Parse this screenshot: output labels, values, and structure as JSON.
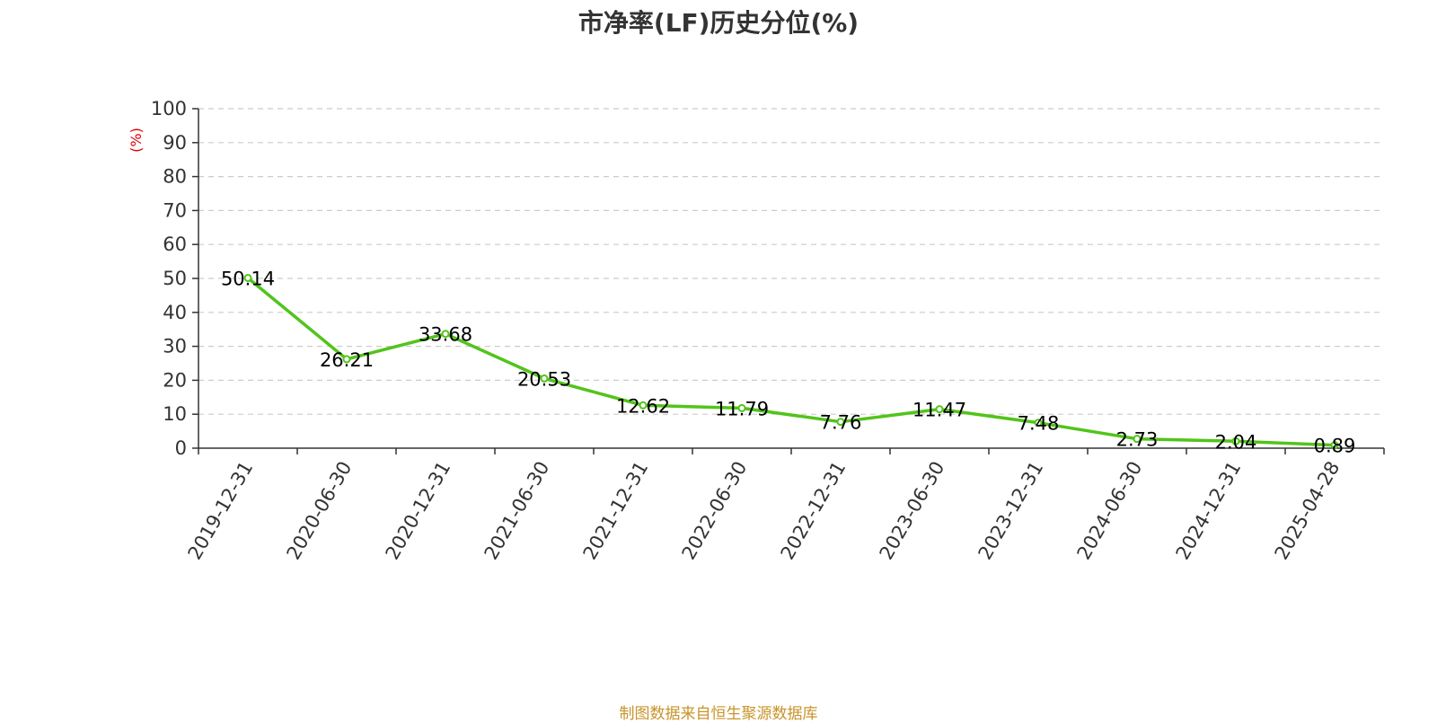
{
  "chart_data": {
    "type": "line",
    "title": "市净率(LF)历史分位(%)",
    "ylabel": "(%)",
    "xlabel": "",
    "categories": [
      "2019-12-31",
      "2020-06-30",
      "2020-12-31",
      "2021-06-30",
      "2021-12-31",
      "2022-06-30",
      "2022-12-31",
      "2023-06-30",
      "2023-12-31",
      "2024-06-30",
      "2024-12-31",
      "2025-04-28"
    ],
    "y_ticks": [
      "0",
      "10",
      "20",
      "30",
      "40",
      "50",
      "60",
      "70",
      "80",
      "90",
      "100"
    ],
    "ylim": [
      0,
      100
    ],
    "grid": true,
    "series": [
      {
        "values": [
          50.14,
          26.21,
          33.68,
          20.53,
          12.62,
          11.79,
          7.76,
          11.47,
          7.48,
          2.73,
          2.04,
          0.89
        ],
        "labels": [
          "50.14",
          "26.21",
          "33.68",
          "20.53",
          "12.62",
          "11.79",
          "7.76",
          "11.47",
          "7.48",
          "2.73",
          "2.04",
          "0.89"
        ]
      }
    ],
    "colors": {
      "line": "#52c41a",
      "axis": "#333333",
      "grid": "#cccccc",
      "ylabel": "#e00000"
    }
  },
  "source": "制图数据来自恒生聚源数据库"
}
